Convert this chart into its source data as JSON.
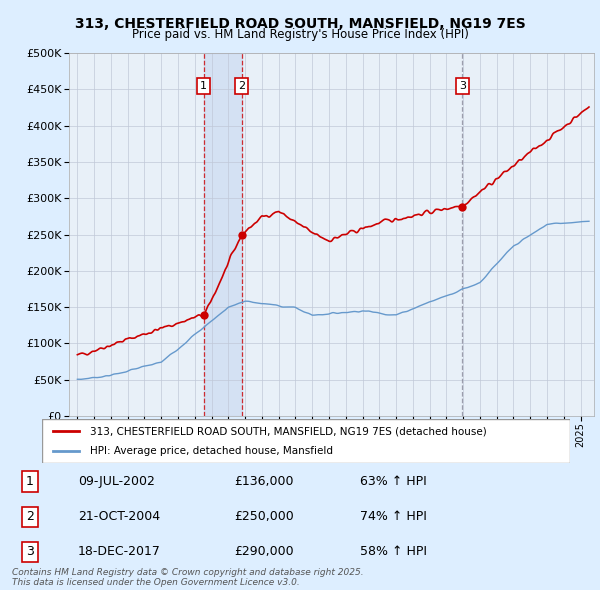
{
  "title_line1": "313, CHESTERFIELD ROAD SOUTH, MANSFIELD, NG19 7ES",
  "title_line2": "Price paid vs. HM Land Registry's House Price Index (HPI)",
  "legend_line1": "313, CHESTERFIELD ROAD SOUTH, MANSFIELD, NG19 7ES (detached house)",
  "legend_line2": "HPI: Average price, detached house, Mansfield",
  "footnote": "Contains HM Land Registry data © Crown copyright and database right 2025.\nThis data is licensed under the Open Government Licence v3.0.",
  "transactions": [
    {
      "num": 1,
      "date": "09-JUL-2002",
      "price": 136000,
      "hpi_pct": "63% ↑ HPI",
      "date_decimal": 2002.52
    },
    {
      "num": 2,
      "date": "21-OCT-2004",
      "price": 250000,
      "hpi_pct": "74% ↑ HPI",
      "date_decimal": 2004.8
    },
    {
      "num": 3,
      "date": "18-DEC-2017",
      "price": 290000,
      "hpi_pct": "58% ↑ HPI",
      "date_decimal": 2017.96
    }
  ],
  "red_color": "#cc0000",
  "blue_color": "#6699cc",
  "bg_color": "#ddeeff",
  "plot_bg": "#e8f0f8",
  "grid_color": "#c0c8d8",
  "shade_color": "#c8d8f0",
  "ylim": [
    0,
    500000
  ],
  "yticks": [
    0,
    50000,
    100000,
    150000,
    200000,
    250000,
    300000,
    350000,
    400000,
    450000,
    500000
  ],
  "xlim_start": 1994.5,
  "xlim_end": 2025.8
}
